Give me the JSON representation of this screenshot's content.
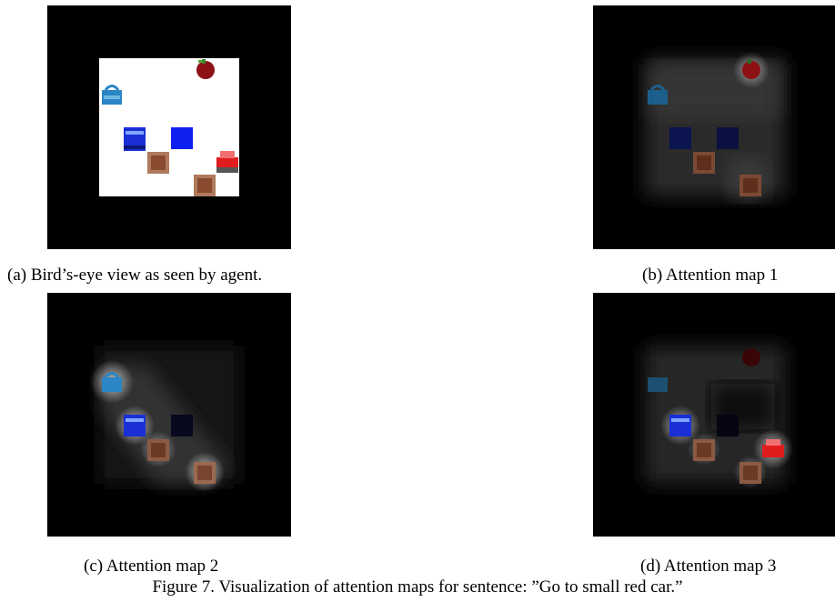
{
  "figure": {
    "caption": "Figure 7. Visualization of attention maps for sentence: ”Go to small red car.”"
  },
  "panels": [
    {
      "id": "a",
      "caption": "(a) Bird’s-eye view as seen by agent."
    },
    {
      "id": "b",
      "caption": "(b) Attention map 1"
    },
    {
      "id": "c",
      "caption": "(c) Attention map 2"
    },
    {
      "id": "d",
      "caption": "(d) Attention map 3"
    }
  ],
  "colors": {
    "background": "#000000",
    "arena": "#ffffff",
    "apple": "#8e1116",
    "bag": "#2a86c4",
    "blue_block": "#1020f0",
    "blue_car": "#1a2fd6",
    "crate": "#9a5a3c",
    "red_car": "#e01c1c"
  },
  "objects": [
    "apple",
    "handbag",
    "blue-car",
    "blue-block",
    "crate",
    "red-car",
    "crate"
  ]
}
